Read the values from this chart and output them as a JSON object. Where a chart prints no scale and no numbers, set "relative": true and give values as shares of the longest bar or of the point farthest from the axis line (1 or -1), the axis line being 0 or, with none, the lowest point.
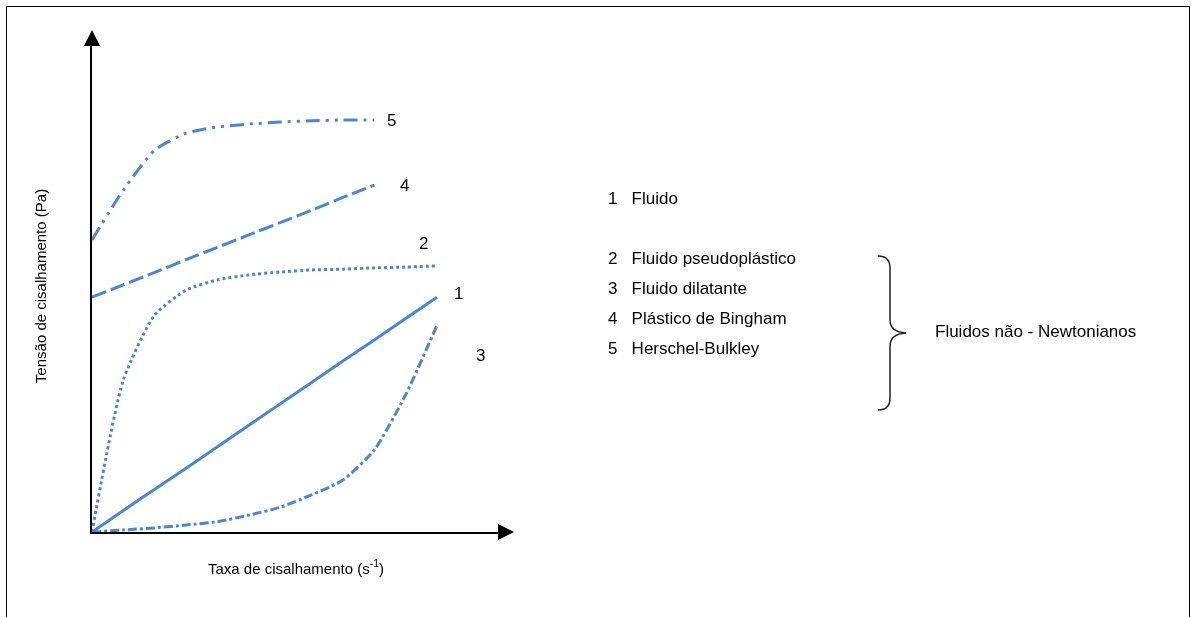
{
  "chart_data": {
    "type": "line",
    "relative": true,
    "xlabel": "Taxa de cisalhamento (s$^{-1}$)",
    "ylabel": "Tensão de cisalhamento (Pa)",
    "categories": [
      null,
      null,
      null,
      null,
      null,
      null,
      null,
      null,
      null,
      null,
      null,
      null
    ],
    "series": [
      {
        "name": "1",
        "color": "#4a86d4",
        "line_style": "solid",
        "values": [
          0,
          0.052,
          0.104,
          0.155,
          0.207,
          0.259,
          0.311,
          0.363,
          0.415,
          0.466,
          0.518,
          0.57
        ]
      },
      {
        "name": "2",
        "color": "#4a86d4",
        "line_style": "dotted",
        "values": [
          0,
          0.369,
          0.527,
          0.587,
          0.612,
          0.624,
          0.631,
          0.636,
          0.638,
          0.641,
          0.643,
          0.646
        ]
      },
      {
        "name": "3",
        "color": "#4a86d4",
        "line_style": "dashdot",
        "values": [
          0,
          0.005,
          0.01,
          0.017,
          0.025,
          0.041,
          0.06,
          0.09,
          0.126,
          0.199,
          0.333,
          0.502
        ]
      },
      {
        "name": "4",
        "color": "#4a86d4",
        "line_style": "dashed",
        "values": [
          0.57,
          0.6,
          0.63,
          0.661,
          0.691,
          0.721,
          0.751,
          0.781,
          0.812,
          0.842,
          null,
          null
        ]
      },
      {
        "name": "5",
        "color": "#4a86d4",
        "line_style": "longdashdot",
        "values": [
          0.709,
          0.83,
          0.927,
          0.968,
          0.983,
          0.99,
          0.995,
          0.998,
          1,
          1,
          null,
          null
        ]
      }
    ],
    "annotations": [
      "1   Fluido",
      "2   Fluido pseudoplástico",
      "3   Fluido dilatante",
      "4   Plástico de Bingham",
      "5   Herschel-Bulkley",
      "Fluidos não - Newtonianos"
    ],
    "legend": false,
    "grid": false
  }
}
